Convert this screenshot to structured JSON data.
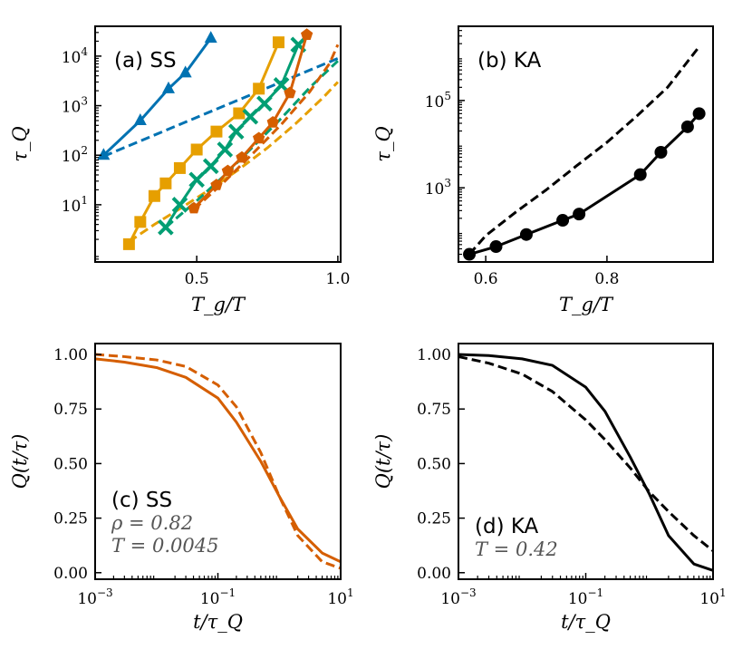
{
  "chart_data": [
    {
      "id": "a",
      "type": "line",
      "title": "(a) SS",
      "xlabel": "T_g/T",
      "ylabel": "τ_Q",
      "xscale": "linear",
      "yscale": "log",
      "xlim": [
        0.14,
        1.01
      ],
      "ylim": [
        0.7,
        40000
      ],
      "xticks": [
        {
          "v": 0.5,
          "label": "0.5"
        },
        {
          "v": 1.0,
          "label": "1.0"
        }
      ],
      "yticks": [
        {
          "v": 10,
          "b": "10",
          "e": "1"
        },
        {
          "v": 100,
          "b": "10",
          "e": "2"
        },
        {
          "v": 1000,
          "b": "10",
          "e": "3"
        },
        {
          "v": 10000,
          "b": "10",
          "e": "4"
        }
      ],
      "series": [
        {
          "name": "blue",
          "color": "#0072b2",
          "marker": "triangle",
          "dash": false,
          "x": [
            0.17,
            0.3,
            0.4,
            0.46,
            0.55
          ],
          "y": [
            100,
            500,
            2200,
            4600,
            23000
          ]
        },
        {
          "name": "blue-fit",
          "color": "#0072b2",
          "dash": true,
          "x": [
            0.17,
            1.0
          ],
          "y": [
            95,
            9000
          ]
        },
        {
          "name": "orange",
          "color": "#e69f00",
          "marker": "square",
          "dash": false,
          "x": [
            0.26,
            0.3,
            0.35,
            0.39,
            0.44,
            0.5,
            0.57,
            0.65,
            0.72,
            0.79
          ],
          "y": [
            1.6,
            4.5,
            15,
            27,
            55,
            130,
            300,
            700,
            2200,
            19000
          ]
        },
        {
          "name": "orange-fit",
          "color": "#e69f00",
          "dash": true,
          "x": [
            0.26,
            0.35,
            0.45,
            0.55,
            0.65,
            0.75,
            0.85,
            0.95,
            1.0
          ],
          "y": [
            1.8,
            4.0,
            9.0,
            21,
            52,
            140,
            430,
            1500,
            3000
          ]
        },
        {
          "name": "green",
          "color": "#009e73",
          "marker": "x",
          "dash": false,
          "x": [
            0.39,
            0.44,
            0.5,
            0.55,
            0.6,
            0.64,
            0.69,
            0.74,
            0.8,
            0.86
          ],
          "y": [
            3.5,
            10,
            32,
            60,
            130,
            300,
            600,
            1100,
            2600,
            17000
          ]
        },
        {
          "name": "green-fit",
          "color": "#009e73",
          "dash": true,
          "x": [
            0.39,
            0.5,
            0.6,
            0.7,
            0.8,
            0.9,
            0.97,
            1.0
          ],
          "y": [
            3.5,
            12,
            40,
            150,
            560,
            2300,
            5500,
            8000
          ]
        },
        {
          "name": "vermillion",
          "color": "#d55e00",
          "marker": "pentagon",
          "dash": false,
          "x": [
            0.49,
            0.57,
            0.61,
            0.66,
            0.72,
            0.77,
            0.83,
            0.89
          ],
          "y": [
            8.5,
            25,
            48,
            90,
            220,
            460,
            1800,
            27000
          ]
        },
        {
          "name": "vermillion-fit",
          "color": "#d55e00",
          "dash": true,
          "x": [
            0.49,
            0.6,
            0.7,
            0.8,
            0.9,
            0.97,
            1.0
          ],
          "y": [
            8.0,
            30,
            110,
            420,
            1900,
            7000,
            17000
          ]
        }
      ]
    },
    {
      "id": "b",
      "type": "line",
      "title": "(b) KA",
      "xlabel": "T_g/T",
      "ylabel": "τ_Q",
      "xscale": "linear",
      "yscale": "log",
      "xlim": [
        0.555,
        0.975
      ],
      "ylim": [
        20,
        5000000
      ],
      "xticks": [
        {
          "v": 0.6,
          "label": "0.6"
        },
        {
          "v": 0.8,
          "label": "0.8"
        }
      ],
      "yticks": [
        {
          "v": 1000,
          "b": "10",
          "e": "3"
        },
        {
          "v": 100000,
          "b": "10",
          "e": "5"
        }
      ],
      "series": [
        {
          "name": "KA",
          "color": "#000000",
          "marker": "circle",
          "dash": false,
          "x": [
            0.573,
            0.617,
            0.667,
            0.727,
            0.754,
            0.855,
            0.889,
            0.933,
            0.952
          ],
          "y": [
            30,
            45,
            85,
            180,
            250,
            2000,
            6500,
            25000,
            50000
          ]
        },
        {
          "name": "KA-fit",
          "color": "#000000",
          "dash": true,
          "x": [
            0.573,
            0.6,
            0.65,
            0.7,
            0.75,
            0.8,
            0.85,
            0.9,
            0.952
          ],
          "y": [
            30,
            80,
            280,
            900,
            3200,
            11000,
            45000,
            200000,
            1700000
          ]
        }
      ]
    },
    {
      "id": "c",
      "type": "line",
      "title": "(c) SS",
      "params": [
        "ρ = 0.82",
        "T = 0.0045"
      ],
      "xlabel": "t/τ_Q",
      "ylabel": "Q(t/τ)",
      "xscale": "log",
      "yscale": "linear",
      "xlim": [
        0.001,
        10
      ],
      "ylim": [
        -0.03,
        1.05
      ],
      "xticks": [
        {
          "v": 0.001,
          "b": "10",
          "e": "−3"
        },
        {
          "v": 0.1,
          "b": "10",
          "e": "−1"
        },
        {
          "v": 10,
          "b": "10",
          "e": "1"
        }
      ],
      "yticks": [
        {
          "v": 0.0,
          "label": "0.00"
        },
        {
          "v": 0.25,
          "label": "0.25"
        },
        {
          "v": 0.5,
          "label": "0.50"
        },
        {
          "v": 0.75,
          "label": "0.75"
        },
        {
          "v": 1.0,
          "label": "1.00"
        }
      ],
      "series": [
        {
          "name": "SS-solid",
          "color": "#d55e00",
          "dash": false,
          "x": [
            0.001,
            0.003,
            0.01,
            0.03,
            0.1,
            0.2,
            0.5,
            1,
            2,
            5,
            10
          ],
          "y": [
            0.98,
            0.965,
            0.94,
            0.895,
            0.8,
            0.69,
            0.51,
            0.35,
            0.2,
            0.09,
            0.05
          ]
        },
        {
          "name": "SS-dashed",
          "color": "#d55e00",
          "dash": true,
          "x": [
            0.001,
            0.003,
            0.01,
            0.03,
            0.1,
            0.2,
            0.5,
            1,
            2,
            5,
            10
          ],
          "y": [
            1.0,
            0.99,
            0.975,
            0.945,
            0.86,
            0.76,
            0.55,
            0.35,
            0.17,
            0.05,
            0.02
          ]
        }
      ]
    },
    {
      "id": "d",
      "type": "line",
      "title": "(d) KA",
      "params": [
        "T = 0.42"
      ],
      "xlabel": "t/τ_Q",
      "ylabel": "Q(t/τ)",
      "xscale": "log",
      "yscale": "linear",
      "xlim": [
        0.001,
        10
      ],
      "ylim": [
        -0.03,
        1.05
      ],
      "xticks": [
        {
          "v": 0.001,
          "b": "10",
          "e": "−3"
        },
        {
          "v": 0.1,
          "b": "10",
          "e": "−1"
        },
        {
          "v": 10,
          "b": "10",
          "e": "1"
        }
      ],
      "yticks": [
        {
          "v": 0.0,
          "label": "0.00"
        },
        {
          "v": 0.25,
          "label": "0.25"
        },
        {
          "v": 0.5,
          "label": "0.50"
        },
        {
          "v": 0.75,
          "label": "0.75"
        },
        {
          "v": 1.0,
          "label": "1.00"
        }
      ],
      "series": [
        {
          "name": "KA-solid",
          "color": "#000000",
          "dash": false,
          "x": [
            0.001,
            0.003,
            0.01,
            0.03,
            0.1,
            0.2,
            0.5,
            1,
            2,
            5,
            10
          ],
          "y": [
            1.0,
            0.995,
            0.98,
            0.95,
            0.85,
            0.74,
            0.53,
            0.36,
            0.17,
            0.04,
            0.01
          ]
        },
        {
          "name": "KA-dashed",
          "color": "#000000",
          "dash": true,
          "x": [
            0.001,
            0.003,
            0.01,
            0.03,
            0.1,
            0.2,
            0.5,
            1,
            2,
            5,
            10
          ],
          "y": [
            0.99,
            0.96,
            0.91,
            0.83,
            0.7,
            0.61,
            0.48,
            0.37,
            0.28,
            0.17,
            0.1
          ]
        }
      ]
    }
  ]
}
